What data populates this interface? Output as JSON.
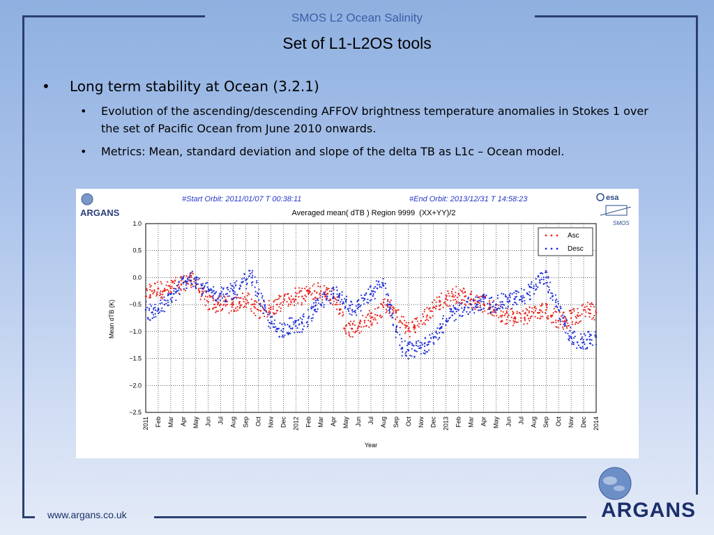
{
  "header": {
    "title": "SMOS L2 Ocean Salinity",
    "slide_title": "Set of L1-L2OS tools"
  },
  "bullets": {
    "main": "Long term stability at Ocean (3.2.1)",
    "sub1": "Evolution of the ascending/descending AFFOV brightness temperature anomalies in Stokes 1 over the set of Pacific Ocean from June 2010 onwards.",
    "sub2": "Metrics: Mean, standard deviation and slope of the delta TB as L1c – Ocean model."
  },
  "footer": {
    "url": "www.argans.co.uk",
    "logo_text": "ARGANS"
  },
  "chart_panel": {
    "logo_left": "ARGANS",
    "logo_esa": "esa",
    "logo_smos": "SMOS",
    "start_orbit": "#Start Orbit: 2011/01/07 T 00:38:11",
    "end_orbit": "#End Orbit: 2013/12/31 T 14:58:23"
  },
  "colors": {
    "asc": "#e8261f",
    "desc": "#1f2fd8",
    "frame": "#2a3f6e",
    "header_title": "#3a5ea8"
  },
  "chart_data": {
    "type": "scatter",
    "title": "Averaged mean( dTB ) Region 9999  (XX+YY)/2",
    "xlabel": "Year",
    "ylabel": "Mean dTB (K)",
    "ylim": [
      -2.5,
      1.0
    ],
    "yticks": [
      "1.0",
      "0.5",
      "0.0",
      "−0.5",
      "−1.0",
      "−1.5",
      "−2.0",
      "−2.5"
    ],
    "xticks": [
      "2011",
      "Feb",
      "Mar",
      "Apr",
      "May",
      "Jun",
      "Jul",
      "Aug",
      "Sep",
      "Oct",
      "Nov",
      "Dec",
      "2012",
      "Feb",
      "Mar",
      "Apr",
      "May",
      "Jun",
      "Jul",
      "Aug",
      "Sep",
      "Oct",
      "Nov",
      "Dec",
      "2013",
      "Feb",
      "Mar",
      "Apr",
      "May",
      "Jun",
      "Jul",
      "Aug",
      "Sep",
      "Oct",
      "Nov",
      "Dec",
      "2014"
    ],
    "x_unit": "month index from Jan 2011",
    "grid": true,
    "legend": "top-right",
    "series": [
      {
        "name": "Asc",
        "x": [
          0,
          0.5,
          1,
          1.5,
          2,
          2.5,
          3,
          3.5,
          4,
          4.5,
          5,
          5.5,
          6,
          6.5,
          7,
          7.5,
          8,
          8.5,
          9,
          9.5,
          10,
          10.5,
          11,
          11.5,
          12,
          12.5,
          13,
          13.5,
          14,
          14.5,
          15,
          15.5,
          16,
          16.5,
          17,
          17.5,
          18,
          18.5,
          19,
          19.5,
          20,
          20.5,
          21,
          21.5,
          22,
          22.5,
          23,
          23.5,
          24,
          24.5,
          25,
          25.5,
          26,
          26.5,
          27,
          27.5,
          28,
          28.5,
          29,
          29.5,
          30,
          30.5,
          31,
          31.5,
          32,
          32.5,
          33,
          33.5,
          34,
          34.5,
          35,
          35.5,
          36
        ],
        "y": [
          -0.35,
          -0.25,
          -0.2,
          -0.25,
          -0.2,
          -0.15,
          -0.1,
          -0.05,
          -0.1,
          -0.3,
          -0.45,
          -0.5,
          -0.5,
          -0.5,
          -0.5,
          -0.45,
          -0.4,
          -0.5,
          -0.6,
          -0.6,
          -0.55,
          -0.5,
          -0.45,
          -0.4,
          -0.35,
          -0.35,
          -0.3,
          -0.25,
          -0.25,
          -0.3,
          -0.35,
          -0.6,
          -0.9,
          -0.95,
          -0.9,
          -0.8,
          -0.75,
          -0.7,
          -0.55,
          -0.55,
          -0.65,
          -0.85,
          -0.95,
          -0.9,
          -0.8,
          -0.7,
          -0.55,
          -0.45,
          -0.4,
          -0.35,
          -0.3,
          -0.35,
          -0.4,
          -0.45,
          -0.5,
          -0.55,
          -0.6,
          -0.7,
          -0.7,
          -0.75,
          -0.75,
          -0.7,
          -0.65,
          -0.6,
          -0.6,
          -0.7,
          -0.8,
          -0.8,
          -0.75,
          -0.7,
          -0.6,
          -0.6,
          -0.65
        ]
      },
      {
        "name": "Desc",
        "x": [
          0,
          0.5,
          1,
          1.5,
          2,
          2.5,
          3,
          3.5,
          4,
          4.5,
          5,
          5.5,
          6,
          6.5,
          7,
          7.5,
          8,
          8.5,
          9,
          9.5,
          10,
          10.5,
          11,
          11.5,
          12,
          12.5,
          13,
          13.5,
          14,
          14.5,
          15,
          15.5,
          16,
          16.5,
          17,
          17.5,
          18,
          18.5,
          19,
          19.5,
          20,
          20.5,
          21,
          21.5,
          22,
          22.5,
          23,
          23.5,
          24,
          24.5,
          25,
          25.5,
          26,
          26.5,
          27,
          27.5,
          28,
          28.5,
          29,
          29.5,
          30,
          30.5,
          31,
          31.5,
          32,
          32.5,
          33,
          33.5,
          34,
          34.5,
          35,
          35.5,
          36
        ],
        "y": [
          -0.6,
          -0.65,
          -0.6,
          -0.5,
          -0.4,
          -0.25,
          -0.1,
          0.0,
          -0.1,
          -0.2,
          -0.25,
          -0.3,
          -0.3,
          -0.3,
          -0.25,
          -0.2,
          -0.05,
          0.0,
          -0.3,
          -0.6,
          -0.85,
          -0.95,
          -0.95,
          -0.9,
          -0.9,
          -0.85,
          -0.75,
          -0.6,
          -0.5,
          -0.35,
          -0.3,
          -0.3,
          -0.45,
          -0.6,
          -0.55,
          -0.4,
          -0.3,
          -0.2,
          -0.15,
          -0.5,
          -1.0,
          -1.3,
          -1.35,
          -1.35,
          -1.3,
          -1.25,
          -1.1,
          -0.95,
          -0.8,
          -0.7,
          -0.6,
          -0.55,
          -0.5,
          -0.5,
          -0.45,
          -0.5,
          -0.5,
          -0.45,
          -0.45,
          -0.4,
          -0.35,
          -0.3,
          -0.2,
          -0.05,
          0.0,
          -0.35,
          -0.6,
          -0.85,
          -1.1,
          -1.2,
          -1.2,
          -1.15,
          -1.1
        ]
      }
    ]
  }
}
